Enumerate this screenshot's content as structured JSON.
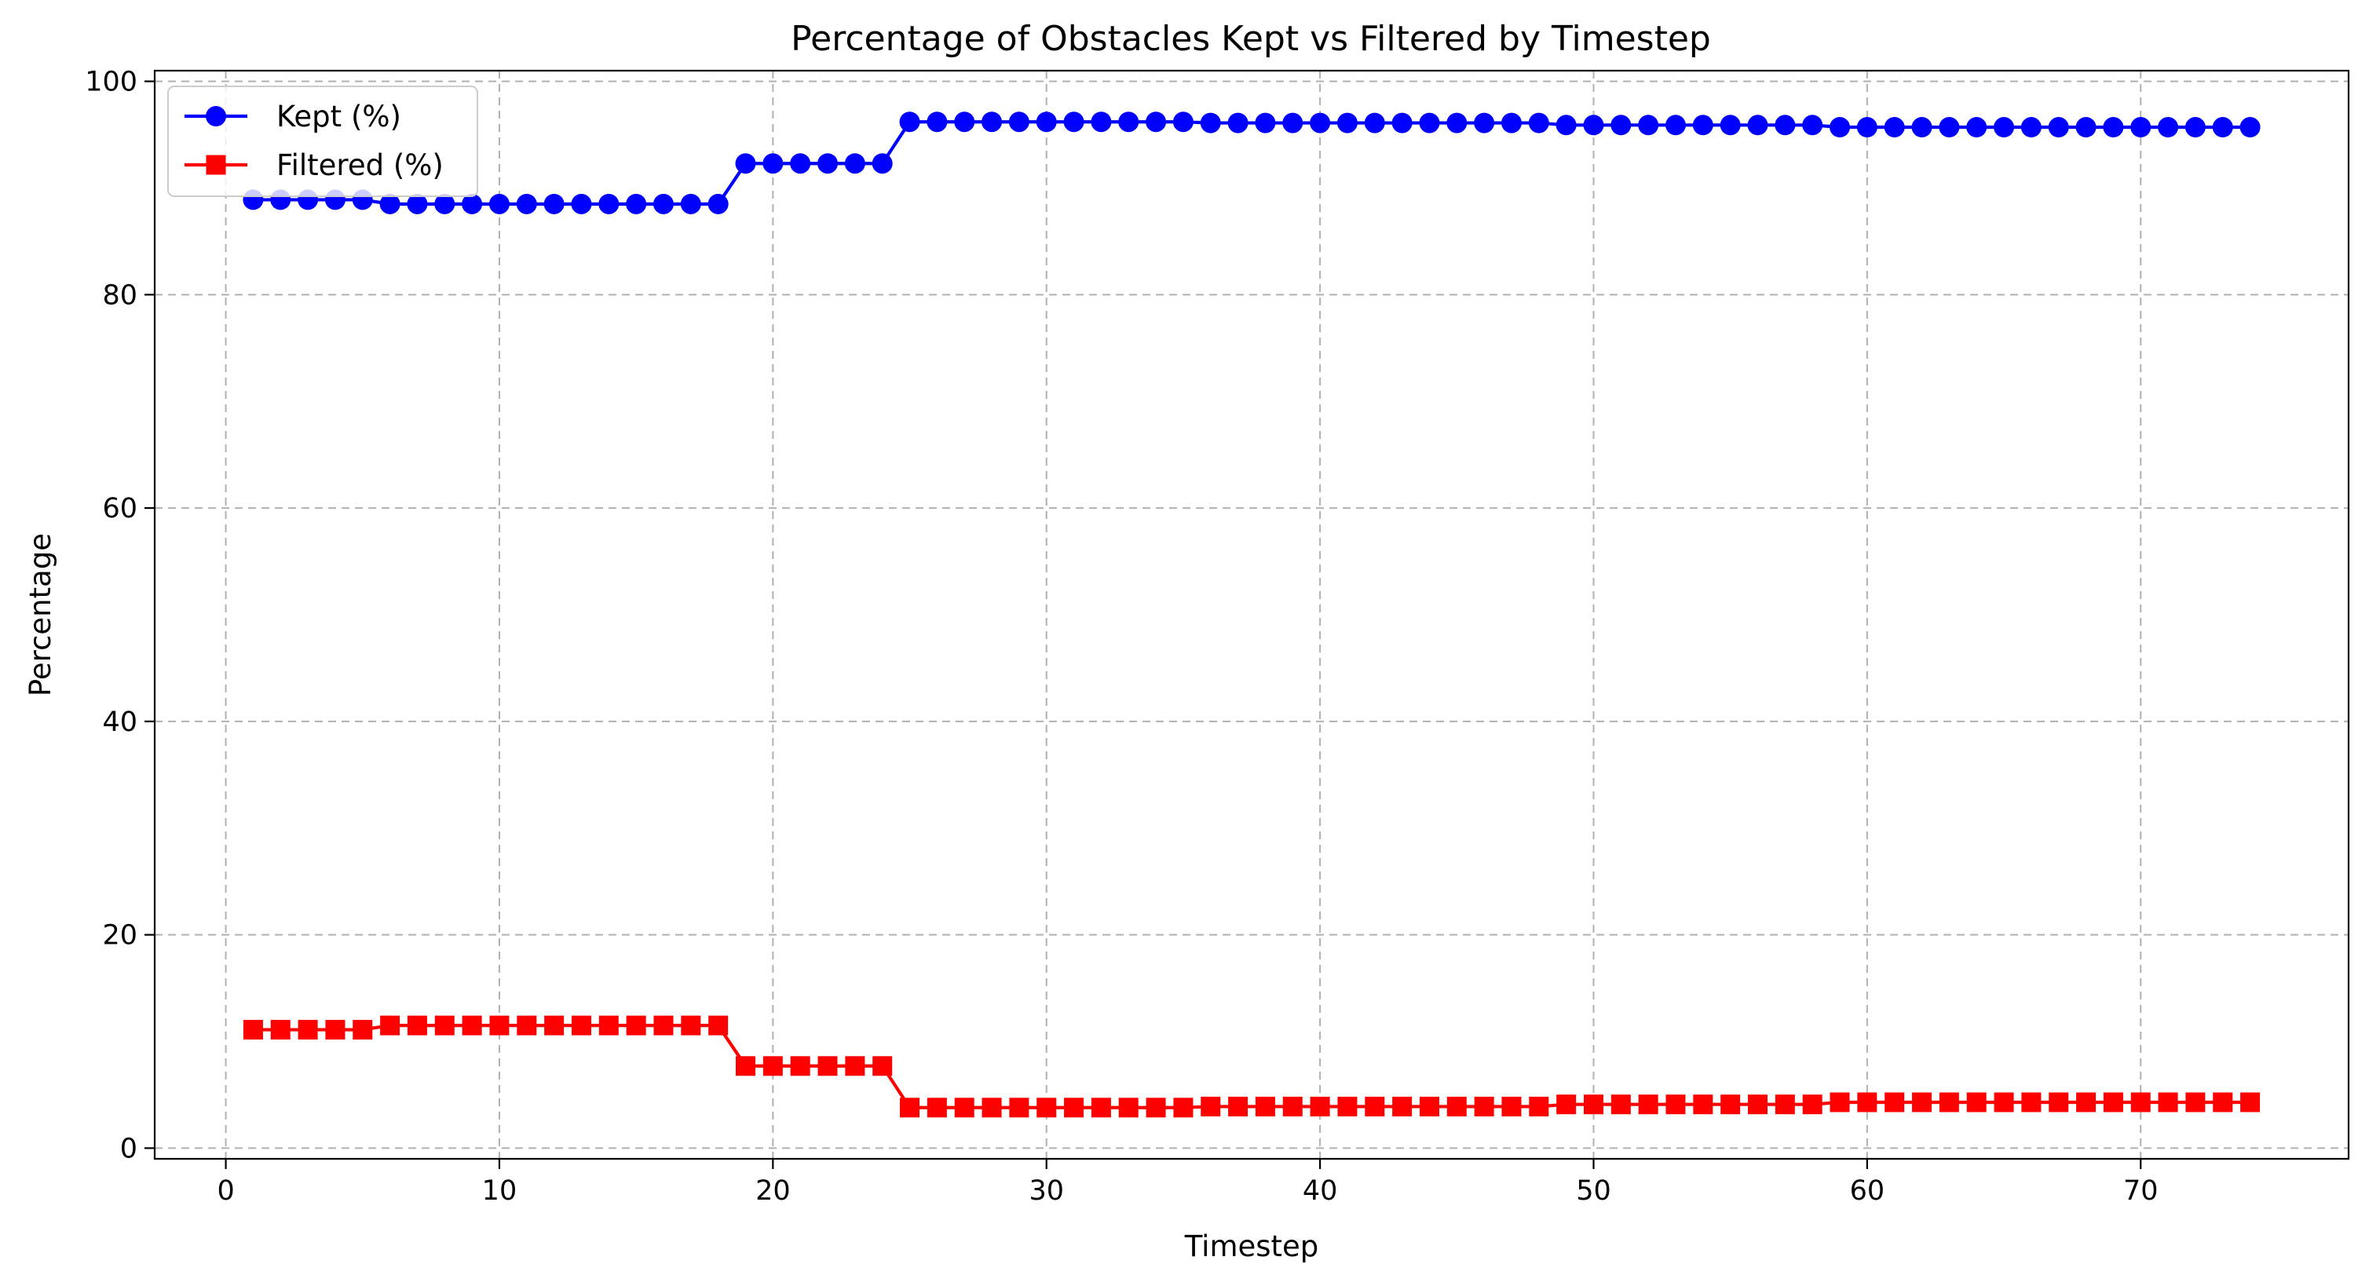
{
  "chart_data": {
    "type": "line",
    "title": "Percentage of Obstacles Kept vs Filtered by Timestep",
    "xlabel": "Timestep",
    "ylabel": "Percentage",
    "xlim": [
      -2.6,
      77.6
    ],
    "ylim": [
      -1,
      101
    ],
    "xticks": [
      0,
      10,
      20,
      30,
      40,
      50,
      60,
      70
    ],
    "yticks": [
      0,
      20,
      40,
      60,
      80,
      100
    ],
    "grid": true,
    "legend_position": "upper left",
    "x": [
      1,
      2,
      3,
      4,
      5,
      6,
      7,
      8,
      9,
      10,
      11,
      12,
      13,
      14,
      15,
      16,
      17,
      18,
      19,
      20,
      21,
      22,
      23,
      24,
      25,
      26,
      27,
      28,
      29,
      30,
      31,
      32,
      33,
      34,
      35,
      36,
      37,
      38,
      39,
      40,
      41,
      42,
      43,
      44,
      45,
      46,
      47,
      48,
      49,
      50,
      51,
      52,
      53,
      54,
      55,
      56,
      57,
      58,
      59,
      60,
      61,
      62,
      63,
      64,
      65,
      66,
      67,
      68,
      69,
      70,
      71,
      72,
      73,
      74
    ],
    "series": [
      {
        "name": "Kept (%)",
        "color": "#0000ff",
        "marker": "circle",
        "values": [
          88.9,
          88.9,
          88.9,
          88.9,
          88.9,
          88.5,
          88.5,
          88.5,
          88.5,
          88.5,
          88.5,
          88.5,
          88.5,
          88.5,
          88.5,
          88.5,
          88.5,
          88.5,
          92.3,
          92.3,
          92.3,
          92.3,
          92.3,
          92.3,
          96.2,
          96.2,
          96.2,
          96.2,
          96.2,
          96.2,
          96.2,
          96.2,
          96.2,
          96.2,
          96.2,
          96.1,
          96.1,
          96.1,
          96.1,
          96.1,
          96.1,
          96.1,
          96.1,
          96.1,
          96.1,
          96.1,
          96.1,
          96.1,
          95.9,
          95.9,
          95.9,
          95.9,
          95.9,
          95.9,
          95.9,
          95.9,
          95.9,
          95.9,
          95.7,
          95.7,
          95.7,
          95.7,
          95.7,
          95.7,
          95.7,
          95.7,
          95.7,
          95.7,
          95.7,
          95.7,
          95.7,
          95.7,
          95.7,
          95.7
        ]
      },
      {
        "name": "Filtered (%)",
        "color": "#ff0000",
        "marker": "square",
        "values": [
          11.1,
          11.1,
          11.1,
          11.1,
          11.1,
          11.5,
          11.5,
          11.5,
          11.5,
          11.5,
          11.5,
          11.5,
          11.5,
          11.5,
          11.5,
          11.5,
          11.5,
          11.5,
          7.7,
          7.7,
          7.7,
          7.7,
          7.7,
          7.7,
          3.8,
          3.8,
          3.8,
          3.8,
          3.8,
          3.8,
          3.8,
          3.8,
          3.8,
          3.8,
          3.8,
          3.9,
          3.9,
          3.9,
          3.9,
          3.9,
          3.9,
          3.9,
          3.9,
          3.9,
          3.9,
          3.9,
          3.9,
          3.9,
          4.1,
          4.1,
          4.1,
          4.1,
          4.1,
          4.1,
          4.1,
          4.1,
          4.1,
          4.1,
          4.3,
          4.3,
          4.3,
          4.3,
          4.3,
          4.3,
          4.3,
          4.3,
          4.3,
          4.3,
          4.3,
          4.3,
          4.3,
          4.3,
          4.3,
          4.3
        ]
      }
    ]
  }
}
